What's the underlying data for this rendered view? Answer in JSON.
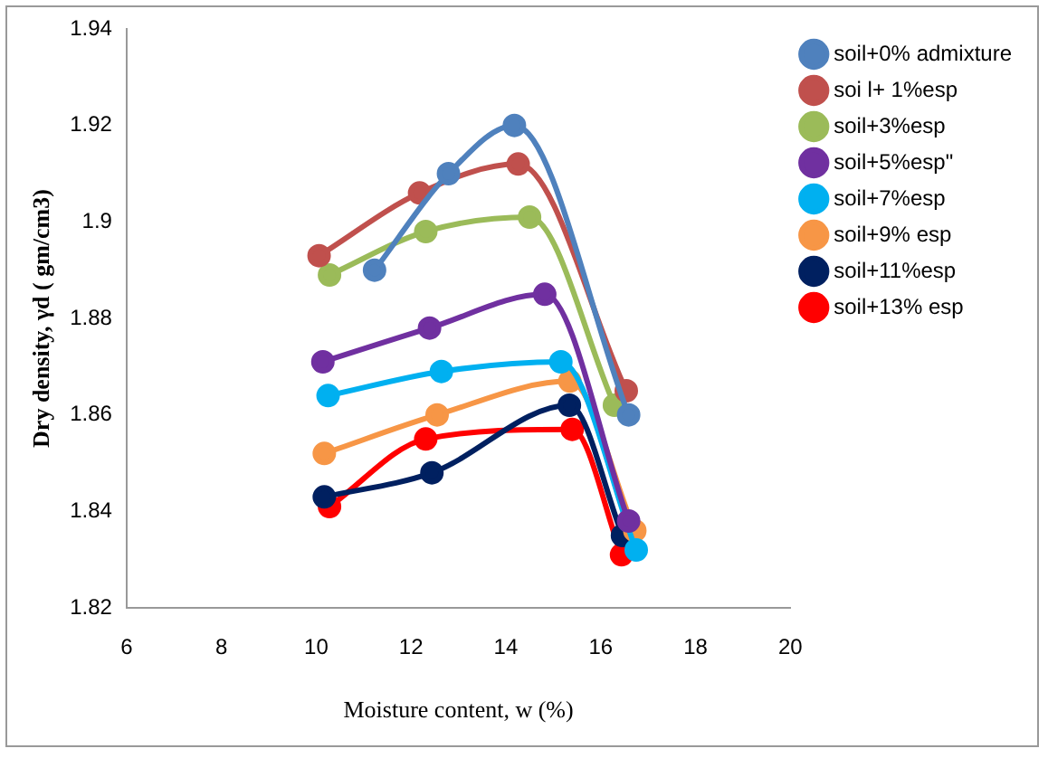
{
  "chart_data": {
    "type": "line",
    "xlabel": "Moisture content, w (%)",
    "ylabel": "Dry density, γd ( gm/cm3)",
    "xlim": [
      6,
      20
    ],
    "xticks": [
      6,
      8,
      10,
      12,
      14,
      16,
      18,
      20
    ],
    "ylim": [
      1.82,
      1.94
    ],
    "yticks": [
      1.82,
      1.84,
      1.86,
      1.88,
      1.9,
      1.92,
      1.94
    ],
    "grid": false,
    "legend": "right",
    "marker": "circle",
    "line_style": "solid",
    "series": [
      {
        "name": "soil+0% admixture",
        "color": "#4f81bd",
        "x": [
          11.23,
          12.79,
          14.18,
          16.59
        ],
        "values": [
          1.89,
          1.91,
          1.92,
          1.86
        ]
      },
      {
        "name": "soi l+ 1%esp",
        "color": "#c0504d",
        "x": [
          10.06,
          12.18,
          14.26,
          16.54
        ],
        "values": [
          1.893,
          1.906,
          1.912,
          1.865
        ]
      },
      {
        "name": "soil+3%esp",
        "color": "#9bbb59",
        "x": [
          10.28,
          12.31,
          14.5,
          16.29
        ],
        "values": [
          1.889,
          1.898,
          1.901,
          1.862
        ]
      },
      {
        "name": "soil+5%esp\"",
        "color": "#7030a0",
        "x": [
          10.14,
          12.39,
          14.82,
          16.59
        ],
        "values": [
          1.871,
          1.878,
          1.885,
          1.838
        ]
      },
      {
        "name": "soil+7%esp",
        "color": "#00b0f0",
        "x": [
          10.25,
          12.64,
          15.16,
          16.75
        ],
        "values": [
          1.864,
          1.869,
          1.871,
          1.832
        ]
      },
      {
        "name": "soil+9% esp",
        "color": "#f79646",
        "x": [
          10.17,
          12.55,
          15.35,
          16.72
        ],
        "values": [
          1.852,
          1.86,
          1.867,
          1.836
        ]
      },
      {
        "name": "soil+11%esp",
        "color": "#002060",
        "x": [
          10.17,
          12.44,
          15.34,
          16.46
        ],
        "values": [
          1.843,
          1.848,
          1.862,
          1.835
        ]
      },
      {
        "name": "soil+13% esp",
        "color": "#ff0000",
        "x": [
          10.28,
          12.31,
          15.4,
          16.44
        ],
        "values": [
          1.841,
          1.855,
          1.857,
          1.831
        ]
      }
    ]
  }
}
